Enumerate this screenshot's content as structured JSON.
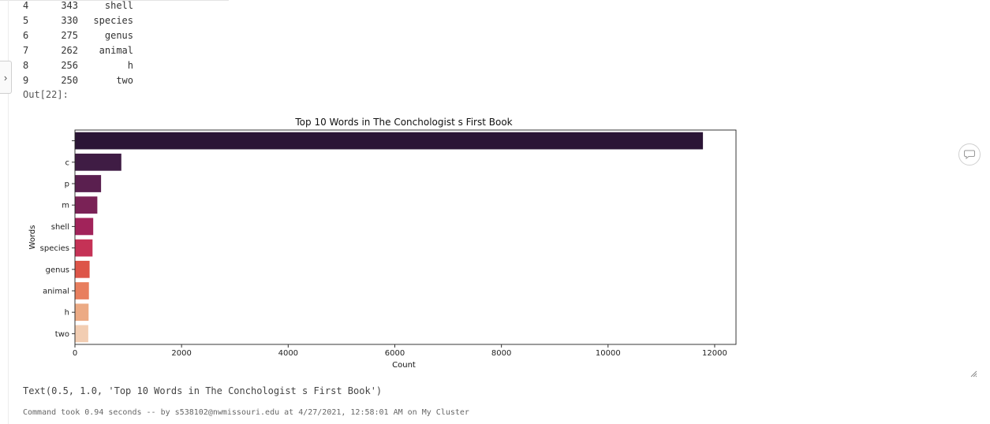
{
  "table_rows": [
    {
      "index": "4",
      "count": "343",
      "word": "shell"
    },
    {
      "index": "5",
      "count": "330",
      "word": "species"
    },
    {
      "index": "6",
      "count": "275",
      "word": "genus"
    },
    {
      "index": "7",
      "count": "262",
      "word": "animal"
    },
    {
      "index": "8",
      "count": "256",
      "word": "h"
    },
    {
      "index": "9",
      "count": "250",
      "word": "two"
    }
  ],
  "out_label": "Out[22]:",
  "chart_data": {
    "type": "bar",
    "orientation": "horizontal",
    "title": "Top 10 Words in The Conchologist s First Book",
    "xlabel": "Count",
    "ylabel": "Words",
    "categories": [
      "",
      "c",
      "p",
      "m",
      "shell",
      "species",
      "genus",
      "animal",
      "h",
      "two"
    ],
    "values": [
      11780,
      870,
      490,
      420,
      343,
      330,
      275,
      262,
      256,
      250
    ],
    "xlim": [
      0,
      12400
    ],
    "xticks": [
      0,
      2000,
      4000,
      6000,
      8000,
      10000,
      12000
    ],
    "grid": false,
    "legend": "none",
    "colors": [
      "#2b1536",
      "#3f1c44",
      "#5a1f4f",
      "#7a2256",
      "#a1235a",
      "#c53256",
      "#dd5548",
      "#e87e5e",
      "#ecaa84",
      "#f2cdb2"
    ]
  },
  "text_output": "Text(0.5, 1.0, 'Top 10 Words in The Conchologist s First Book')",
  "command_footer": "Command took 0.94 seconds -- by s538102@nwmissouri.edu at 4/27/2021, 12:58:01 AM on My Cluster"
}
